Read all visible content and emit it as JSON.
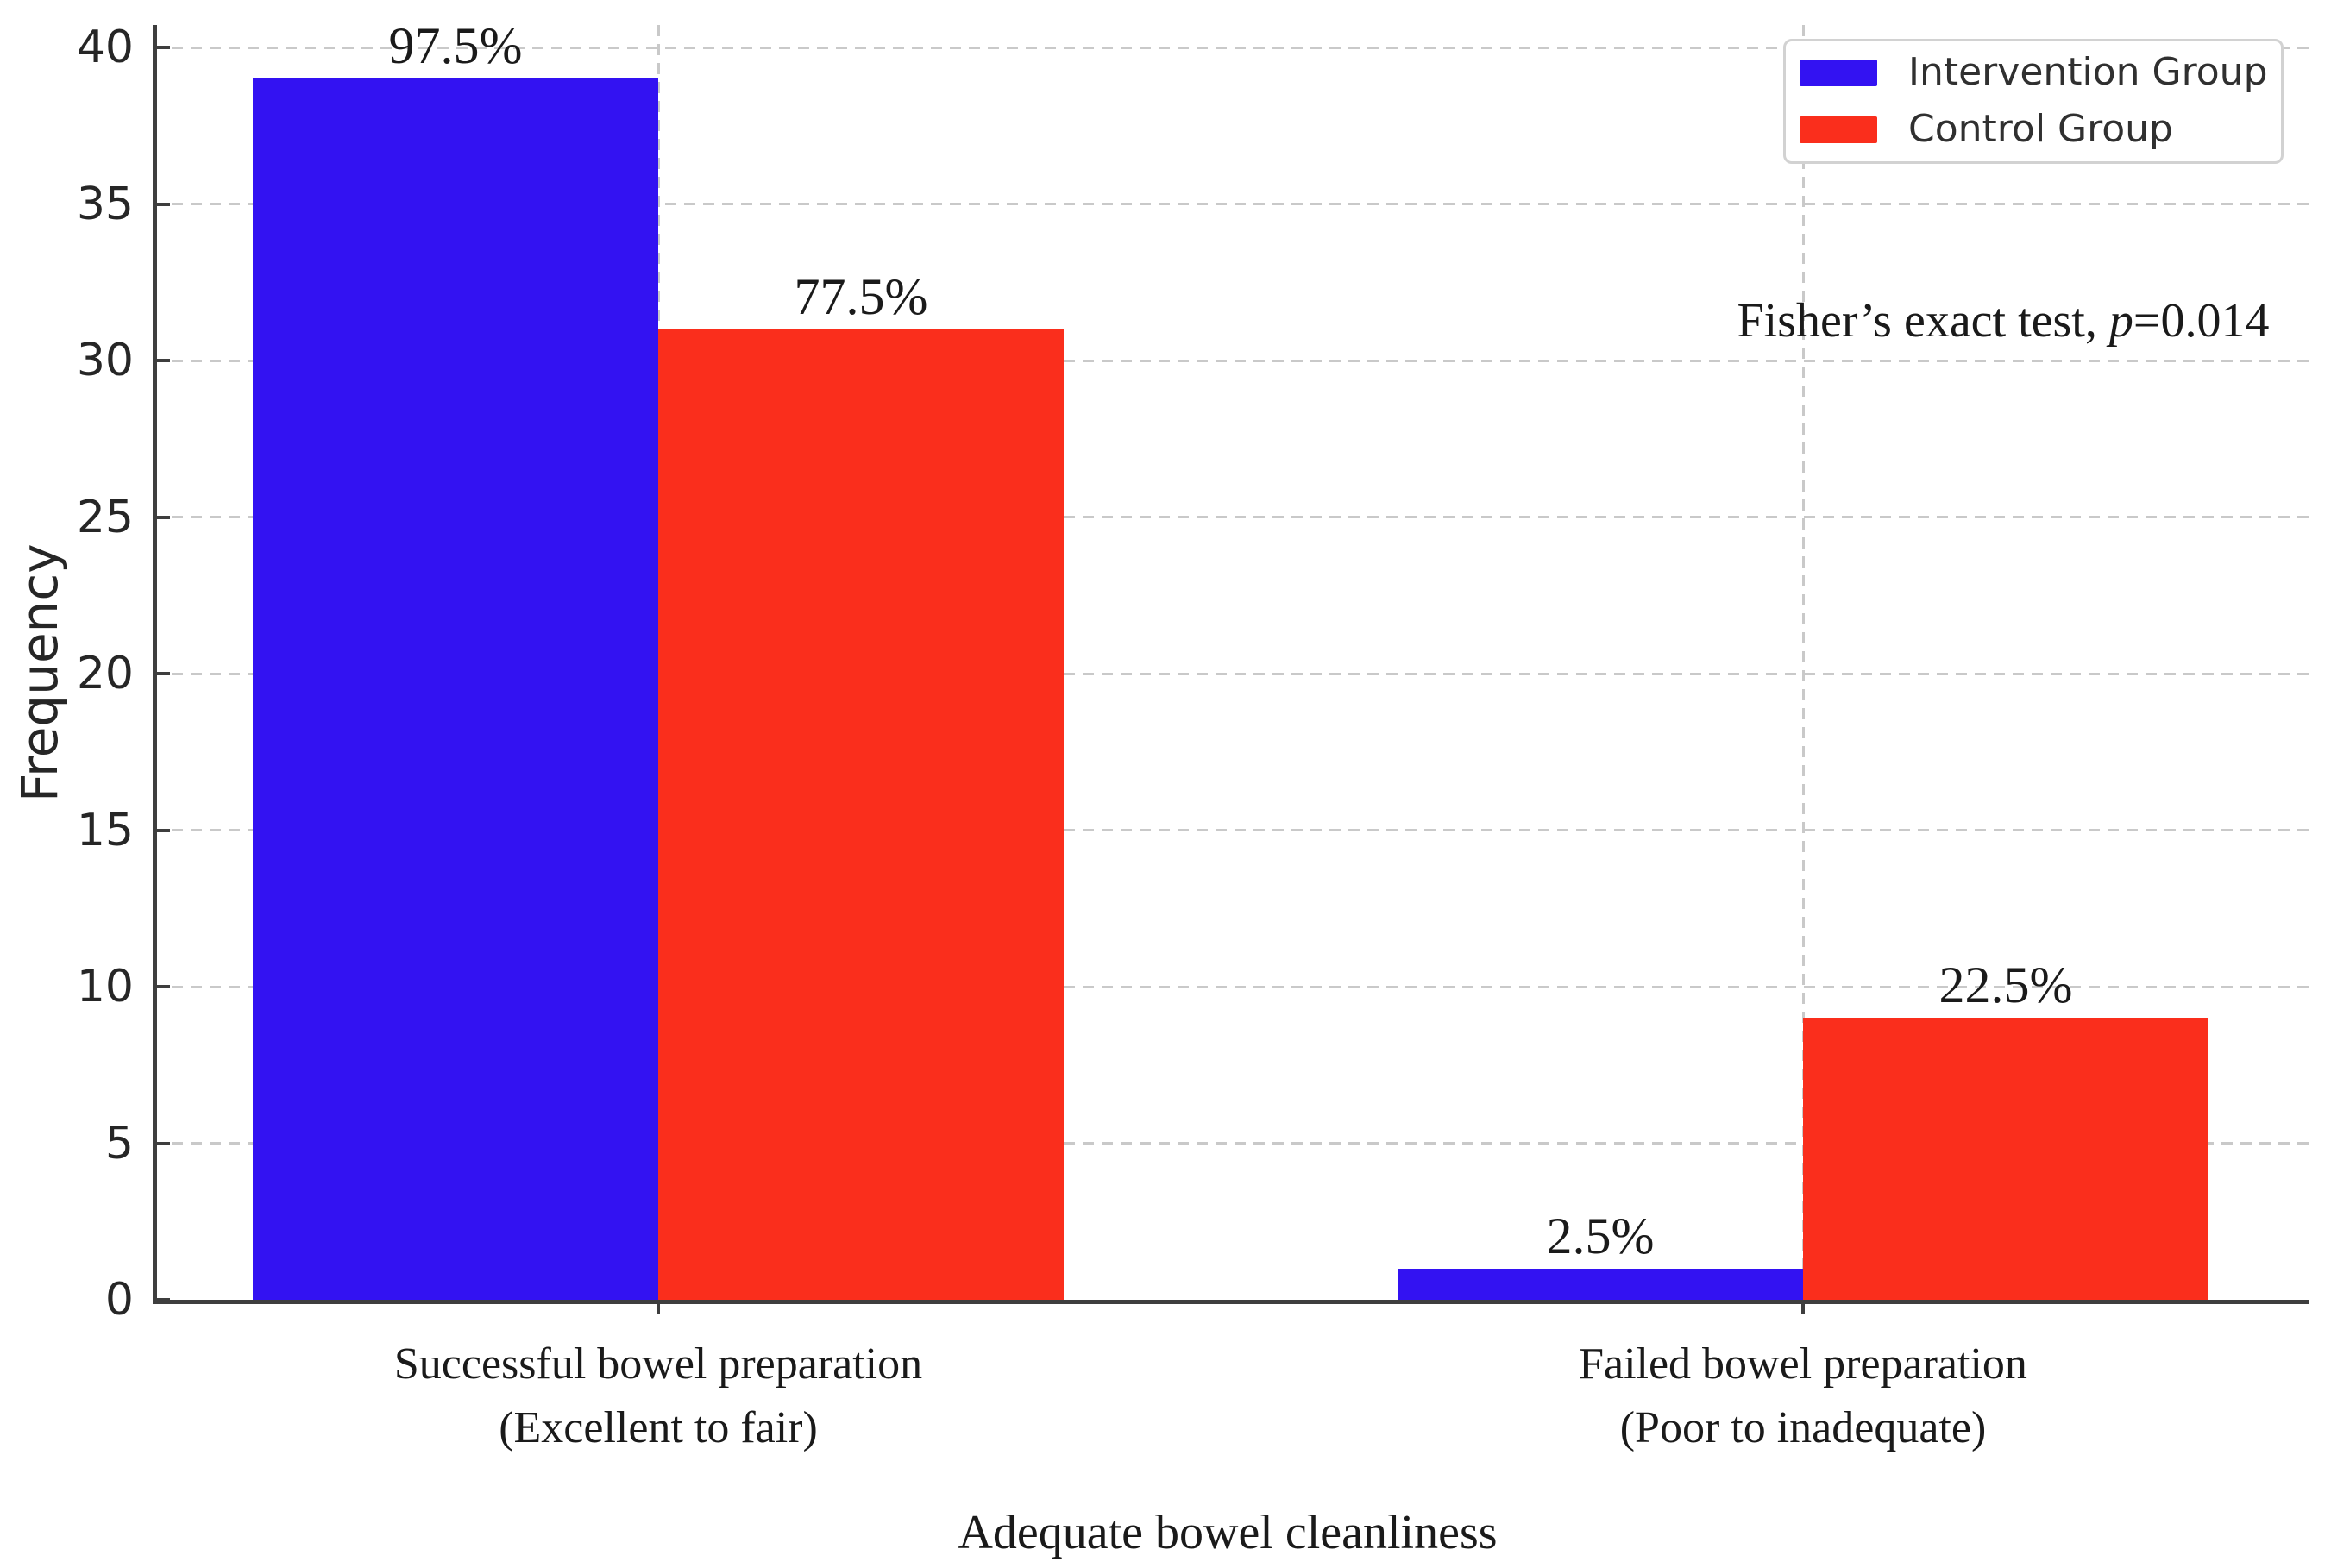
{
  "chart_data": {
    "type": "bar",
    "xlabel": "Adequate bowel cleanliness",
    "ylabel": "Frequency",
    "categories": [
      [
        "Successful bowel preparation",
        "(Excellent to fair)"
      ],
      [
        "Failed bowel preparation",
        "(Poor to inadequate)"
      ]
    ],
    "series": [
      {
        "name": "Intervention Group",
        "color": "#3312f2",
        "values": [
          39,
          1
        ],
        "labels": [
          "97.5%",
          "2.5%"
        ]
      },
      {
        "name": "Control Group",
        "color": "#fa2e1c",
        "values": [
          31,
          9
        ],
        "labels": [
          "77.5%",
          "22.5%"
        ]
      }
    ],
    "ylim": [
      0,
      40
    ],
    "yticks": [
      0,
      5,
      10,
      15,
      20,
      25,
      30,
      35,
      40
    ],
    "grid": "dashed light-gray horizontal lines at y ticks and vertical lines at category centers",
    "legend_position": "upper right",
    "annotation": {
      "text_before": "Fisher’s exact test, ",
      "italic": "p",
      "text_after": "=0.014"
    }
  },
  "legend": {
    "items": [
      {
        "label": "Intervention Group",
        "color": "#3312f2"
      },
      {
        "label": "Control Group",
        "color": "#fa2e1c"
      }
    ]
  },
  "colors": {
    "axis": "#3e3e3e",
    "grid": "#c9c9c9",
    "text": "#1a1a1a",
    "background": "#ffffff"
  }
}
